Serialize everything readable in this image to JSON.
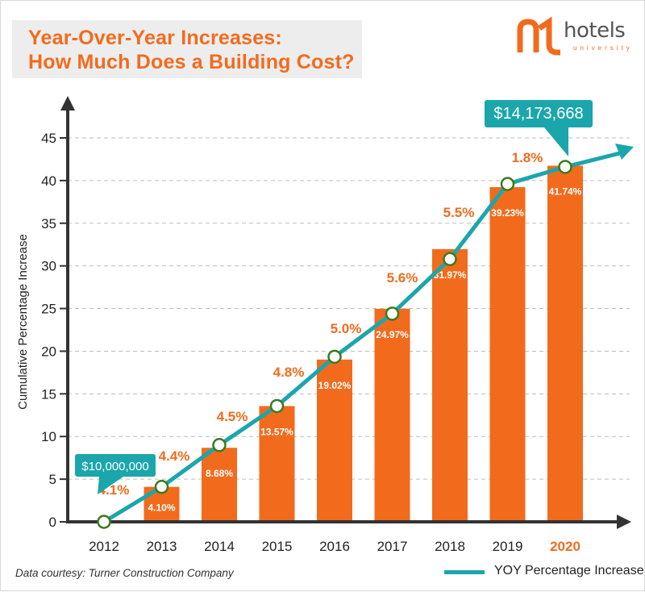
{
  "header": {
    "title_line1": "Year-Over-Year Increases:",
    "title_line2": "How Much Does a Building Cost?"
  },
  "logo": {
    "word": "hotels",
    "sub": "university"
  },
  "footer": {
    "source": "Data courtesy: Turner Construction Company",
    "legend_label": "YOY Percentage Increase"
  },
  "colors": {
    "bar": "#f26b1d",
    "line": "#1ba6ab",
    "axis": "#333333",
    "yoy_label": "#f26b1d",
    "highlight_year": "#f26b1d"
  },
  "chart_data": {
    "type": "bar",
    "categories": [
      "2012",
      "2013",
      "2014",
      "2015",
      "2016",
      "2017",
      "2018",
      "2019",
      "2020"
    ],
    "values": [
      0,
      4.1,
      8.68,
      13.57,
      19.02,
      24.97,
      31.97,
      39.23,
      41.74
    ],
    "bar_labels": [
      "",
      "4.10%",
      "8.68%",
      "13.57%",
      "19.02%",
      "24.97%",
      "31.97%",
      "39.23%",
      "41.74%"
    ],
    "line_series": {
      "name": "YOY Percentage Increase",
      "values": [
        0,
        4.1,
        9.0,
        13.57,
        19.35,
        24.4,
        30.8,
        39.6,
        41.6
      ]
    },
    "yoy_labels": [
      "4.1%",
      "4.4%",
      "4.5%",
      "4.8%",
      "5.0%",
      "5.6%",
      "5.5%",
      "1.8%"
    ],
    "callouts": [
      {
        "text": "$10,000,000",
        "category": "2012"
      },
      {
        "text": "$14,173,668",
        "category": "2020"
      }
    ],
    "highlight_category": "2020",
    "ylabel": "Cumulative Percentage Increase",
    "xlabel": "",
    "ylim": [
      0,
      45
    ],
    "yticks": [
      0,
      5,
      10,
      15,
      20,
      25,
      30,
      35,
      40,
      45
    ],
    "grid": true,
    "legend": "bottom-right"
  }
}
